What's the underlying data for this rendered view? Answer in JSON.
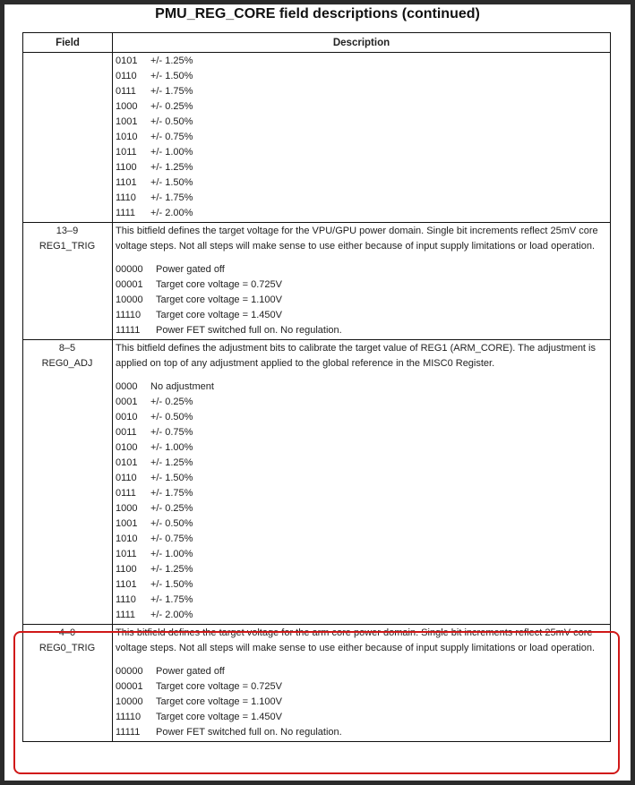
{
  "title": "PMU_REG_CORE field descriptions (continued)",
  "headers": {
    "field": "Field",
    "description": "Description"
  },
  "highlight_color": "#d01818",
  "rows": [
    {
      "field_bits": "",
      "field_name": "",
      "paragraph": "",
      "code_width": 4,
      "entries": [
        {
          "code": "0101",
          "value": "+/- 1.25%"
        },
        {
          "code": "0110",
          "value": "+/- 1.50%"
        },
        {
          "code": "0111",
          "value": "+/- 1.75%"
        },
        {
          "code": "1000",
          "value": "+/- 0.25%"
        },
        {
          "code": "1001",
          "value": "+/- 0.50%"
        },
        {
          "code": "1010",
          "value": "+/- 0.75%"
        },
        {
          "code": "1011",
          "value": "+/- 1.00%"
        },
        {
          "code": "1100",
          "value": "+/- 1.25%"
        },
        {
          "code": "1101",
          "value": "+/- 1.50%"
        },
        {
          "code": "1110",
          "value": "+/- 1.75%"
        },
        {
          "code": "1111",
          "value": "+/- 2.00%"
        }
      ]
    },
    {
      "field_bits": "13–9",
      "field_name": "REG1_TRIG",
      "paragraph": "This bitfield defines the target voltage for the VPU/GPU power domain. Single bit increments reflect 25mV core voltage steps. Not all steps will make sense to use either because of input supply limitations or load operation.",
      "code_width": 5,
      "entries": [
        {
          "code": "00000",
          "value": "Power gated off"
        },
        {
          "code": "00001",
          "value": "Target core voltage = 0.725V"
        },
        {
          "code": "10000",
          "value": "Target core voltage = 1.100V"
        },
        {
          "code": "11110",
          "value": "Target core voltage = 1.450V"
        },
        {
          "code": "11111",
          "value": "Power FET switched full on. No regulation."
        }
      ]
    },
    {
      "field_bits": "8–5",
      "field_name": "REG0_ADJ",
      "paragraph": "This bitfield defines the adjustment bits to calibrate the target value of REG1 (ARM_CORE). The adjustment is applied on top of any adjustment applied to the global reference in the MISC0 Register.",
      "code_width": 4,
      "entries": [
        {
          "code": "0000",
          "value": "No adjustment"
        },
        {
          "code": "0001",
          "value": "+/- 0.25%"
        },
        {
          "code": "0010",
          "value": "+/- 0.50%"
        },
        {
          "code": "0011",
          "value": "+/- 0.75%"
        },
        {
          "code": "0100",
          "value": "+/- 1.00%"
        },
        {
          "code": "0101",
          "value": "+/- 1.25%"
        },
        {
          "code": "0110",
          "value": "+/- 1.50%"
        },
        {
          "code": "0111",
          "value": "+/- 1.75%"
        },
        {
          "code": "1000",
          "value": "+/- 0.25%"
        },
        {
          "code": "1001",
          "value": "+/- 0.50%"
        },
        {
          "code": "1010",
          "value": "+/- 0.75%"
        },
        {
          "code": "1011",
          "value": "+/- 1.00%"
        },
        {
          "code": "1100",
          "value": "+/- 1.25%"
        },
        {
          "code": "1101",
          "value": "+/- 1.50%"
        },
        {
          "code": "1110",
          "value": "+/- 1.75%"
        },
        {
          "code": "1111",
          "value": "+/- 2.00%"
        }
      ]
    },
    {
      "field_bits": "4–0",
      "field_name": "REG0_TRIG",
      "paragraph": "This bitfield defines the target voltage for the arm core power domain. Single bit increments reflect 25mV core voltage steps. Not all steps will make sense to use either because of input supply limitations or load operation.",
      "code_width": 5,
      "highlighted": true,
      "entries": [
        {
          "code": "00000",
          "value": "Power gated off"
        },
        {
          "code": "00001",
          "value": "Target core voltage = 0.725V"
        },
        {
          "code": "10000",
          "value": "Target core voltage = 1.100V"
        },
        {
          "code": "11110",
          "value": "Target core voltage = 1.450V"
        },
        {
          "code": "11111",
          "value": "Power FET switched full on. No regulation."
        }
      ]
    }
  ]
}
